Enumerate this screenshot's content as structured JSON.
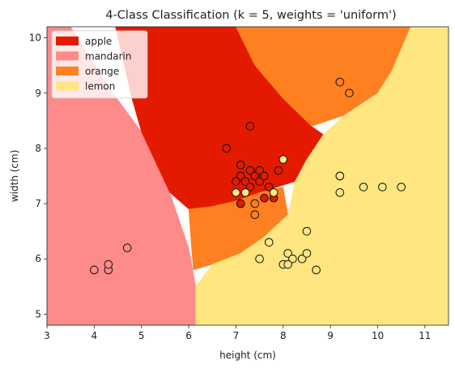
{
  "chart_data": {
    "type": "scatter",
    "title": "4-Class Classification (k = 5, weights = 'uniform')",
    "xlabel": "height (cm)",
    "ylabel": "width (cm)",
    "xlim": [
      3,
      11.5
    ],
    "ylim": [
      4.8,
      10.2
    ],
    "xticks": [
      "3",
      "4",
      "5",
      "6",
      "7",
      "8",
      "9",
      "10",
      "11"
    ],
    "yticks": [
      "5",
      "6",
      "7",
      "8",
      "9",
      "10"
    ],
    "legend_position": "top-left",
    "grid": false,
    "classes": [
      {
        "name": "apple",
        "color": "#e31a00"
      },
      {
        "name": "mandarin",
        "color": "#ff8a8a"
      },
      {
        "name": "orange",
        "color": "#ff8020"
      },
      {
        "name": "lemon",
        "color": "#ffe680"
      }
    ],
    "regions": [
      {
        "class": "mandarin",
        "polygon": [
          [
            3,
            4.8
          ],
          [
            6.15,
            4.8
          ],
          [
            6.15,
            5.5
          ],
          [
            6.0,
            6.2
          ],
          [
            5.6,
            7.2
          ],
          [
            5.0,
            8.3
          ],
          [
            4.4,
            9.0
          ],
          [
            3.8,
            9.8
          ],
          [
            3.5,
            10.2
          ],
          [
            3,
            10.2
          ]
        ]
      },
      {
        "class": "apple",
        "polygon": [
          [
            4.45,
            10.2
          ],
          [
            7.0,
            10.2
          ],
          [
            7.4,
            9.5
          ],
          [
            8.0,
            8.9
          ],
          [
            8.6,
            8.4
          ],
          [
            8.85,
            8.25
          ],
          [
            8.5,
            7.8
          ],
          [
            8.25,
            7.4
          ],
          [
            7.5,
            7.2
          ],
          [
            7.0,
            7.05
          ],
          [
            6.5,
            6.95
          ],
          [
            6.0,
            6.9
          ],
          [
            5.6,
            7.2
          ],
          [
            5.0,
            8.3
          ],
          [
            4.8,
            8.9
          ]
        ]
      },
      {
        "class": "orange",
        "polygon": [
          [
            7.0,
            10.2
          ],
          [
            10.7,
            10.2
          ],
          [
            10.3,
            9.4
          ],
          [
            10.0,
            9.0
          ],
          [
            9.3,
            8.6
          ],
          [
            8.6,
            8.4
          ],
          [
            8.0,
            8.9
          ],
          [
            7.4,
            9.5
          ]
        ]
      },
      {
        "class": "orange",
        "polygon": [
          [
            6.0,
            6.9
          ],
          [
            6.5,
            6.95
          ],
          [
            7.0,
            7.05
          ],
          [
            7.5,
            7.2
          ],
          [
            8.0,
            7.3
          ],
          [
            8.1,
            6.8
          ],
          [
            7.6,
            6.4
          ],
          [
            7.1,
            6.1
          ],
          [
            6.5,
            5.9
          ],
          [
            6.1,
            5.8
          ],
          [
            6.05,
            6.3
          ]
        ]
      },
      {
        "class": "lemon",
        "polygon": [
          [
            6.15,
            4.8
          ],
          [
            11.5,
            4.8
          ],
          [
            11.5,
            10.2
          ],
          [
            10.7,
            10.2
          ],
          [
            10.3,
            9.4
          ],
          [
            10.0,
            9.0
          ],
          [
            9.3,
            8.6
          ],
          [
            8.85,
            8.25
          ],
          [
            8.5,
            7.8
          ],
          [
            8.25,
            7.4
          ],
          [
            8.1,
            6.8
          ],
          [
            7.6,
            6.4
          ],
          [
            7.1,
            6.1
          ],
          [
            6.5,
            5.9
          ],
          [
            6.15,
            5.5
          ]
        ]
      }
    ],
    "points": [
      {
        "x": 7.1,
        "y": 7.0,
        "class": "apple"
      },
      {
        "x": 7.1,
        "y": 7.0,
        "class": "apple"
      },
      {
        "x": 6.8,
        "y": 8.0,
        "class": "apple"
      },
      {
        "x": 7.3,
        "y": 8.4,
        "class": "apple"
      },
      {
        "x": 7.1,
        "y": 7.7,
        "class": "apple"
      },
      {
        "x": 7.1,
        "y": 7.5,
        "class": "apple"
      },
      {
        "x": 7.0,
        "y": 7.4,
        "class": "apple"
      },
      {
        "x": 7.2,
        "y": 7.4,
        "class": "apple"
      },
      {
        "x": 7.3,
        "y": 7.6,
        "class": "apple"
      },
      {
        "x": 7.4,
        "y": 7.5,
        "class": "apple"
      },
      {
        "x": 7.5,
        "y": 7.6,
        "class": "apple"
      },
      {
        "x": 7.5,
        "y": 7.4,
        "class": "apple"
      },
      {
        "x": 7.6,
        "y": 7.5,
        "class": "apple"
      },
      {
        "x": 7.7,
        "y": 7.3,
        "class": "apple"
      },
      {
        "x": 7.8,
        "y": 7.1,
        "class": "apple"
      },
      {
        "x": 7.9,
        "y": 7.6,
        "class": "apple"
      },
      {
        "x": 7.6,
        "y": 7.1,
        "class": "apple"
      },
      {
        "x": 7.3,
        "y": 7.3,
        "class": "apple"
      },
      {
        "x": 4.0,
        "y": 5.8,
        "class": "mandarin"
      },
      {
        "x": 4.3,
        "y": 5.8,
        "class": "mandarin"
      },
      {
        "x": 4.3,
        "y": 5.9,
        "class": "mandarin"
      },
      {
        "x": 4.7,
        "y": 6.2,
        "class": "mandarin"
      },
      {
        "x": 9.2,
        "y": 9.2,
        "class": "orange"
      },
      {
        "x": 9.4,
        "y": 9.0,
        "class": "orange"
      },
      {
        "x": 9.2,
        "y": 7.5,
        "class": "orange"
      },
      {
        "x": 7.4,
        "y": 7.0,
        "class": "orange"
      },
      {
        "x": 7.4,
        "y": 6.8,
        "class": "orange"
      },
      {
        "x": 7.8,
        "y": 7.2,
        "class": "lemon"
      },
      {
        "x": 7.0,
        "y": 7.2,
        "class": "lemon"
      },
      {
        "x": 7.2,
        "y": 7.2,
        "class": "lemon"
      },
      {
        "x": 8.0,
        "y": 7.8,
        "class": "lemon"
      },
      {
        "x": 9.2,
        "y": 7.5,
        "class": "lemon"
      },
      {
        "x": 9.2,
        "y": 7.2,
        "class": "lemon"
      },
      {
        "x": 9.7,
        "y": 7.3,
        "class": "lemon"
      },
      {
        "x": 10.1,
        "y": 7.3,
        "class": "lemon"
      },
      {
        "x": 10.5,
        "y": 7.3,
        "class": "lemon"
      },
      {
        "x": 8.5,
        "y": 6.5,
        "class": "lemon"
      },
      {
        "x": 7.7,
        "y": 6.3,
        "class": "lemon"
      },
      {
        "x": 7.5,
        "y": 6.0,
        "class": "lemon"
      },
      {
        "x": 8.0,
        "y": 5.9,
        "class": "lemon"
      },
      {
        "x": 8.1,
        "y": 6.1,
        "class": "lemon"
      },
      {
        "x": 8.2,
        "y": 6.0,
        "class": "lemon"
      },
      {
        "x": 8.1,
        "y": 5.9,
        "class": "lemon"
      },
      {
        "x": 8.4,
        "y": 6.0,
        "class": "lemon"
      },
      {
        "x": 8.5,
        "y": 6.1,
        "class": "lemon"
      },
      {
        "x": 8.7,
        "y": 5.8,
        "class": "lemon"
      }
    ]
  }
}
